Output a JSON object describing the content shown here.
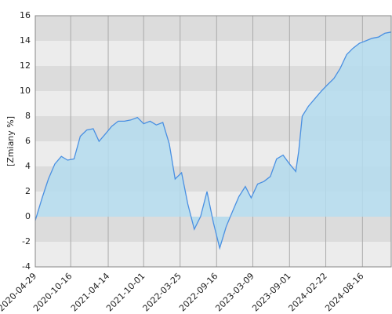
{
  "chart_data": {
    "type": "area",
    "y_label": "[Zmiany %]",
    "x": [
      "2020-04-29",
      "2020-06-01",
      "2020-07-01",
      "2020-08-01",
      "2020-09-01",
      "2020-10-01",
      "2020-11-01",
      "2020-12-01",
      "2021-01-01",
      "2021-02-01",
      "2021-03-01",
      "2021-04-01",
      "2021-05-01",
      "2021-06-01",
      "2021-07-01",
      "2021-08-01",
      "2021-09-01",
      "2021-10-01",
      "2021-11-01",
      "2021-12-01",
      "2022-01-01",
      "2022-02-01",
      "2022-03-01",
      "2022-04-01",
      "2022-05-01",
      "2022-06-01",
      "2022-07-01",
      "2022-08-01",
      "2022-09-01",
      "2022-10-01",
      "2022-11-01",
      "2022-12-01",
      "2023-01-01",
      "2023-02-01",
      "2023-03-01",
      "2023-04-01",
      "2023-05-01",
      "2023-06-01",
      "2023-07-01",
      "2023-08-01",
      "2023-09-01",
      "2023-10-01",
      "2023-10-15",
      "2023-11-01",
      "2023-12-01",
      "2024-01-01",
      "2024-02-01",
      "2024-03-01",
      "2024-04-01",
      "2024-05-01",
      "2024-06-01",
      "2024-07-01",
      "2024-08-01",
      "2024-09-01",
      "2024-10-01",
      "2024-11-01",
      "2024-12-01",
      "2025-01-01"
    ],
    "values": [
      -0.3,
      1.5,
      3.0,
      4.2,
      4.8,
      4.5,
      4.6,
      6.4,
      6.9,
      7.0,
      6.0,
      6.6,
      7.2,
      7.6,
      7.6,
      7.7,
      7.9,
      7.4,
      7.6,
      7.3,
      7.5,
      5.8,
      3.0,
      3.5,
      1.0,
      -1.0,
      0.0,
      2.0,
      -0.5,
      -2.5,
      -0.8,
      0.4,
      1.6,
      2.4,
      1.5,
      2.6,
      2.8,
      3.2,
      4.6,
      4.9,
      4.2,
      3.6,
      5.2,
      8.0,
      8.8,
      9.4,
      10.0,
      10.5,
      11.0,
      11.8,
      12.9,
      13.4,
      13.8,
      14.0,
      14.2,
      14.3,
      14.6,
      14.7
    ],
    "line_color": "#4a90e2",
    "fill_color": "#b4dcee",
    "xlim": [
      "2020-04-29",
      "2025-01-01"
    ],
    "xticks": [
      "2020-04-29",
      "2020-10-16",
      "2021-04-14",
      "2021-10-01",
      "2022-03-25",
      "2022-09-16",
      "2023-03-09",
      "2023-09-01",
      "2024-02-22",
      "2024-08-16"
    ],
    "ylim": [
      -4,
      16
    ],
    "yticks": [
      -4,
      -2,
      0,
      2,
      4,
      6,
      8,
      10,
      12,
      14,
      16
    ],
    "grid": true
  }
}
